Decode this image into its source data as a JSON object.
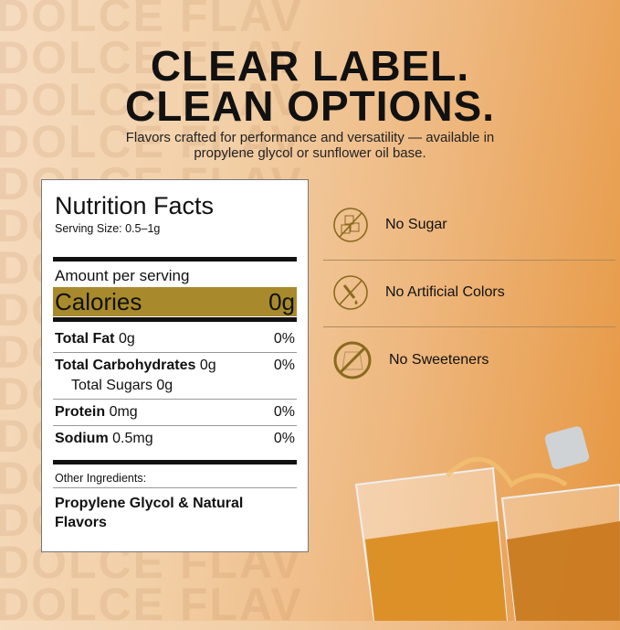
{
  "watermark": "DOLCE FLAV",
  "headline": {
    "line1": "CLEAR LABEL.",
    "line2": "CLEAN OPTIONS."
  },
  "subtitle": {
    "line1": "Flavors crafted for performance and versatility — available in",
    "line2": "propylene glycol or sunflower oil base."
  },
  "nutrition": {
    "title": "Nutrition Facts",
    "serving": "Serving Size: 0.5–1g",
    "amount": "Amount per serving",
    "calories_label": "Calories",
    "calories_value": "0g",
    "rows": [
      {
        "label": "Total Fat",
        "amount": "0g",
        "dv": "0%"
      },
      {
        "label": "Total Carbohydrates",
        "amount": "0g",
        "dv": "0%"
      },
      {
        "label": "Total Sugars",
        "amount": "0g",
        "dv": ""
      },
      {
        "label": "Protein",
        "amount": "0mg",
        "dv": "0%"
      },
      {
        "label": "Sodium",
        "amount": "0.5mg",
        "dv": "0%"
      }
    ],
    "other_label": "Other Ingredients:",
    "other_value": "Propylene Glycol & Natural Flavors"
  },
  "features": [
    {
      "icon": "no-sugar-icon",
      "label": "No Sugar"
    },
    {
      "icon": "no-artificial-colors-icon",
      "label": "No Artificial Colors"
    },
    {
      "icon": "no-sweeteners-icon",
      "label": "No Sweeteners"
    }
  ],
  "colors": {
    "accent": "#a88a2c",
    "icon": "#8a6a1e"
  }
}
